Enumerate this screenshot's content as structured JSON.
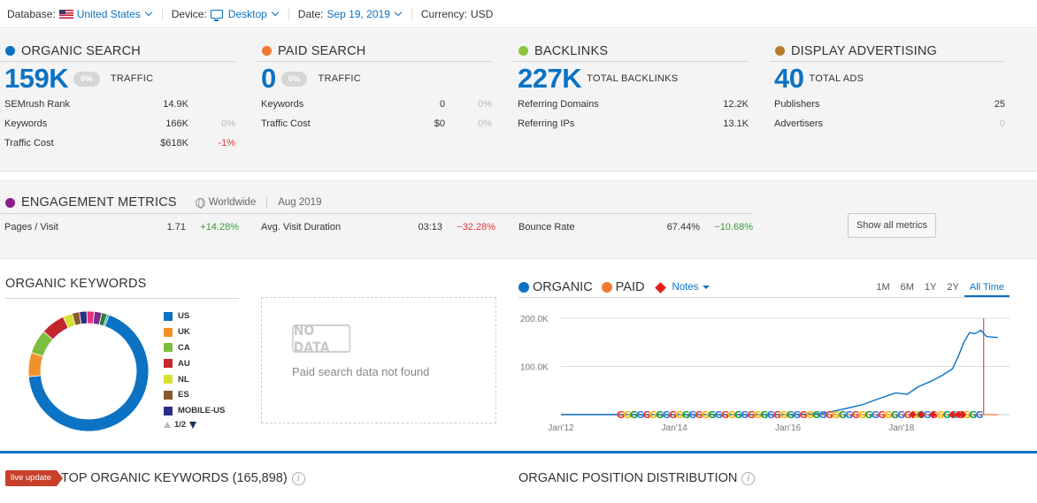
{
  "filters": {
    "database_label": "Database:",
    "database_value": "United States",
    "device_label": "Device:",
    "device_value": "Desktop",
    "date_label": "Date:",
    "date_value": "Sep 19, 2019",
    "currency_label": "Currency:",
    "currency_value": "USD"
  },
  "colors": {
    "accent": "#0b72c4",
    "organic": "#0b72c4",
    "paid": "#f07a30",
    "backlinks": "#8cc43c",
    "display": "#b87d2a",
    "engagement": "#8b1e8b",
    "negative": "#e03b3b",
    "positive": "#3a9b3a"
  },
  "organic": {
    "title": "ORGANIC SEARCH",
    "big": "159K",
    "pill": "0%",
    "caption": "TRAFFIC",
    "rows": [
      {
        "k": "SEMrush Rank",
        "v": "14.9K",
        "d": ""
      },
      {
        "k": "Keywords",
        "v": "166K",
        "d": "0%"
      },
      {
        "k": "Traffic Cost",
        "v": "$618K",
        "d": "-1%"
      }
    ]
  },
  "paid": {
    "title": "PAID SEARCH",
    "big": "0",
    "pill": "0%",
    "caption": "TRAFFIC",
    "rows": [
      {
        "k": "Keywords",
        "v": "0",
        "d": "0%"
      },
      {
        "k": "Traffic Cost",
        "v": "$0",
        "d": "0%"
      }
    ]
  },
  "backlinks": {
    "title": "BACKLINKS",
    "big": "227K",
    "caption": "TOTAL BACKLINKS",
    "rows": [
      {
        "k": "Referring Domains",
        "v": "12.2K"
      },
      {
        "k": "Referring IPs",
        "v": "13.1K"
      }
    ]
  },
  "display": {
    "title": "DISPLAY ADVERTISING",
    "big": "40",
    "caption": "TOTAL ADS",
    "rows": [
      {
        "k": "Publishers",
        "v": "25"
      },
      {
        "k": "Advertisers",
        "v": "0"
      }
    ]
  },
  "engagement": {
    "title": "ENGAGEMENT METRICS",
    "scope": "Worldwide",
    "period": "Aug 2019",
    "metrics": [
      {
        "k": "Pages / Visit",
        "v": "1.71",
        "d": "+14.28%"
      },
      {
        "k": "Avg. Visit Duration",
        "v": "03:13",
        "d": "−32.28%"
      },
      {
        "k": "Bounce Rate",
        "v": "67.44%",
        "d": "−10.68%"
      }
    ],
    "button": "Show all metrics"
  },
  "keywords": {
    "title": "ORGANIC KEYWORDS",
    "legend": [
      {
        "label": "US",
        "color": "#0b72c4"
      },
      {
        "label": "UK",
        "color": "#f0922b"
      },
      {
        "label": "CA",
        "color": "#7cbf3c"
      },
      {
        "label": "AU",
        "color": "#c4262e"
      },
      {
        "label": "NL",
        "color": "#d6e031"
      },
      {
        "label": "ES",
        "color": "#8a5a2e"
      },
      {
        "label": "MOBILE-US",
        "color": "#2a2f86"
      }
    ],
    "pager": "1/2",
    "donut": [
      {
        "value": 68,
        "color": "#0b72c4"
      },
      {
        "value": 6.5,
        "color": "#f0922b"
      },
      {
        "value": 6.5,
        "color": "#7cbf3c"
      },
      {
        "value": 6.5,
        "color": "#c4262e"
      },
      {
        "value": 2.5,
        "color": "#d6e031"
      },
      {
        "value": 2.0,
        "color": "#8a5a2e"
      },
      {
        "value": 2.0,
        "color": "#2a2f86"
      },
      {
        "value": 2.0,
        "color": "#e8347e"
      },
      {
        "value": 2.0,
        "color": "#7a2a8a"
      },
      {
        "value": 1.5,
        "color": "#2e7d40"
      },
      {
        "value": 0.5,
        "color": "#16a6a0"
      }
    ],
    "nodata_stamp": "NO DATA",
    "nodata_msg": "Paid search data not found"
  },
  "trend": {
    "legend_organic": "ORGANIC",
    "legend_paid": "PAID",
    "notes": "Notes",
    "ranges": [
      "1M",
      "6M",
      "1Y",
      "2Y",
      "All Time"
    ],
    "active_range": "All Time"
  },
  "chart_data": {
    "type": "line",
    "xlabels": [
      "Jan'12",
      "Jan'14",
      "Jan'16",
      "Jan'18"
    ],
    "yticks": [
      "200.0K",
      "100.0K"
    ],
    "ylim": [
      0,
      200000
    ],
    "xlim": [
      2012.0,
      2019.75
    ],
    "series": [
      {
        "name": "ORGANIC",
        "x": [
          2012.0,
          2013.0,
          2014.0,
          2015.0,
          2016.0,
          2016.6,
          2017.0,
          2017.3,
          2017.6,
          2017.9,
          2018.1,
          2018.3,
          2018.5,
          2018.7,
          2018.9,
          2019.0,
          2019.1,
          2019.2,
          2019.3,
          2019.4,
          2019.5,
          2019.7
        ],
        "y": [
          0,
          0,
          0,
          0,
          0,
          2000,
          12000,
          20000,
          33000,
          45000,
          42000,
          58000,
          68000,
          80000,
          95000,
          120000,
          150000,
          170000,
          168000,
          175000,
          162000,
          160000
        ]
      },
      {
        "name": "PAID",
        "x": [
          2012.0,
          2019.7
        ],
        "y": [
          0,
          0
        ]
      }
    ]
  },
  "bottom": {
    "live": "live update",
    "top_keywords": "TOP ORGANIC KEYWORDS (165,898)",
    "position_dist": "ORGANIC POSITION DISTRIBUTION"
  }
}
